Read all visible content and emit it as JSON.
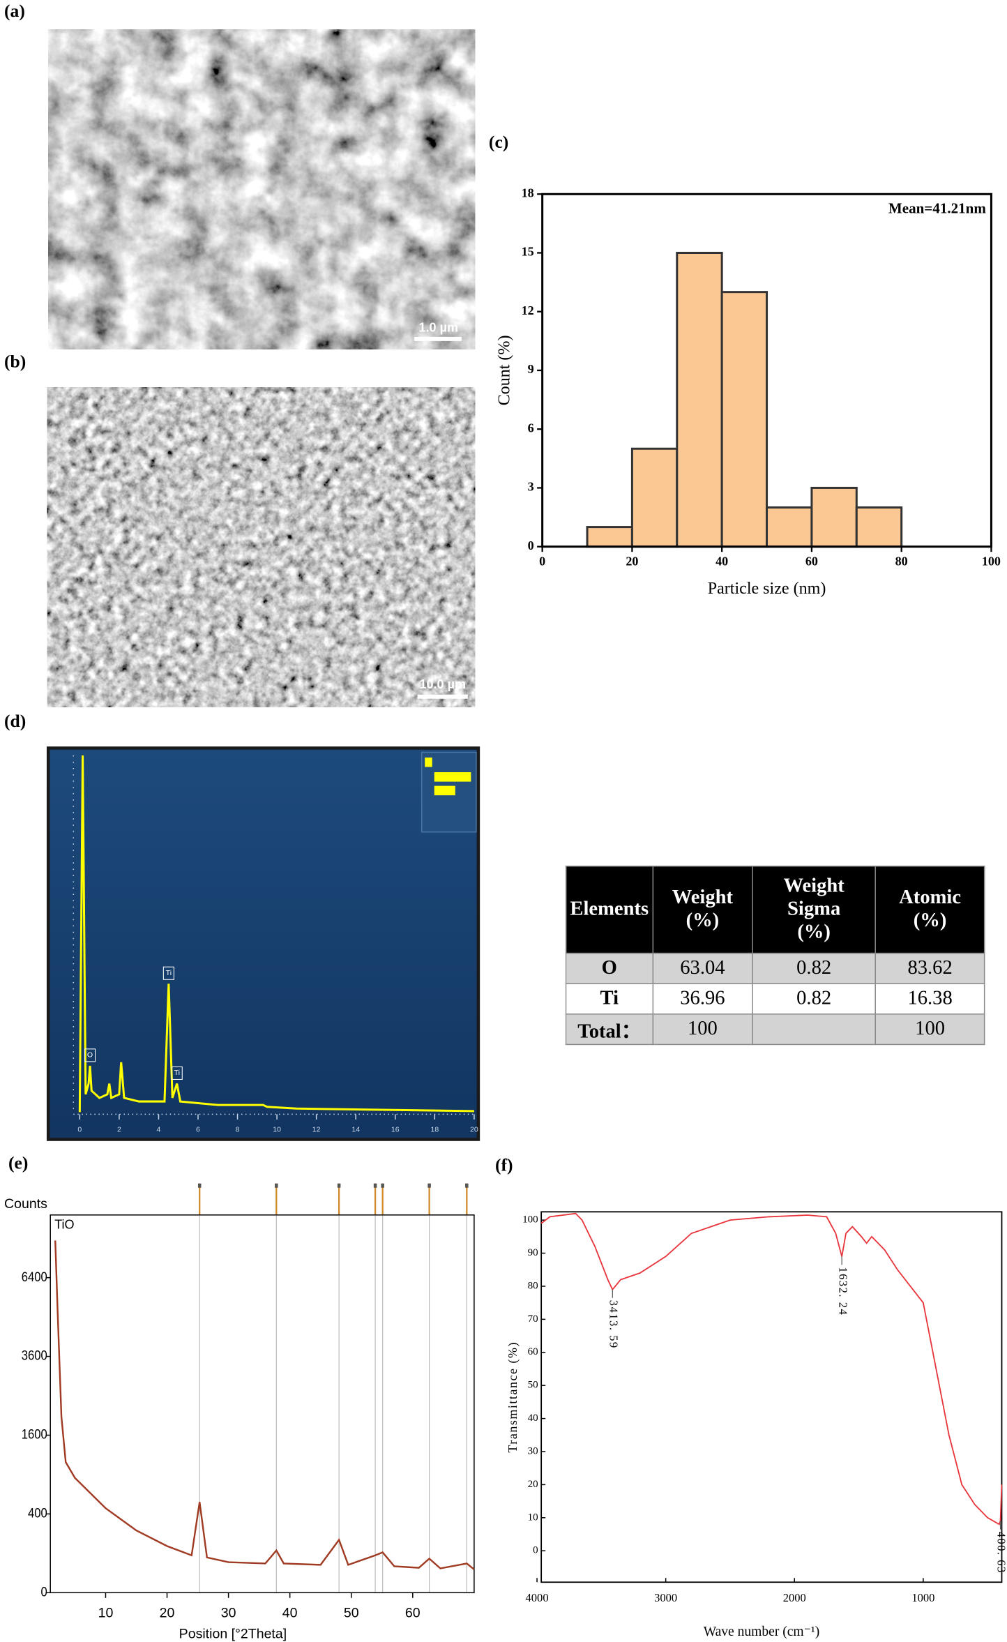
{
  "panel_labels": [
    "(a)",
    "(b)",
    "(c)",
    "(d)",
    "(e)",
    "(f)"
  ],
  "sem": [
    {
      "scale_bar": "1.0 µm"
    },
    {
      "scale_bar": "10.0 µm"
    }
  ],
  "chart_data": [
    {
      "type": "histogram",
      "bins": [
        10,
        20,
        30,
        40,
        50,
        60,
        70,
        80
      ],
      "counts": [
        1,
        5,
        15,
        13,
        2,
        3,
        2
      ],
      "color": "#fbc894",
      "edge_color": "#333333",
      "xlim": [
        0,
        100
      ],
      "xticks": [
        0,
        20,
        40,
        60,
        80,
        100
      ],
      "ylim": [
        0,
        18
      ],
      "yticks": [
        0,
        3,
        6,
        9,
        12,
        15,
        18
      ],
      "xlabel": "Particle size (nm)",
      "ylabel": "Count (%)",
      "annotation": "Mean=41.21nm"
    },
    {
      "type": "line",
      "background": "#1b3f6e",
      "color": "#ffff00",
      "x": [
        0,
        0.15,
        0.3,
        0.45,
        0.52,
        0.6,
        1,
        1.4,
        1.5,
        1.6,
        2,
        2.1,
        2.25,
        3,
        4.3,
        4.51,
        4.7,
        4.93,
        5.1,
        7,
        9.3,
        9.5,
        11,
        20
      ],
      "values": [
        0,
        100,
        5,
        8,
        13,
        6,
        4,
        5,
        8,
        4,
        5,
        14,
        4,
        3,
        3,
        36,
        4,
        8,
        3,
        2,
        2,
        1.5,
        1,
        0.3
      ],
      "xlim": [
        0,
        20
      ],
      "xticks": [
        0,
        2,
        4,
        6,
        8,
        10,
        12,
        14,
        16,
        18,
        20
      ],
      "ylim": [
        0,
        100
      ],
      "peak_labels": [
        {
          "text": "O",
          "x": 0.52
        },
        {
          "text": "Ti",
          "x": 4.51
        },
        {
          "text": "Ti",
          "x": 4.93
        }
      ]
    },
    {
      "type": "line",
      "yscale": "sqrt",
      "color": "#a03a22",
      "x": [
        1.8,
        2.2,
        2.8,
        3.5,
        5,
        10,
        15,
        20,
        24,
        25.3,
        26.5,
        30,
        36,
        37.8,
        39,
        45,
        48,
        49.5,
        53.9,
        55.1,
        57,
        61,
        62.7,
        64.5,
        68.8,
        70
      ],
      "values": [
        8000,
        5000,
        2000,
        1100,
        850,
        460,
        250,
        140,
        90,
        530,
        80,
        60,
        55,
        115,
        55,
        50,
        180,
        50,
        90,
        105,
        45,
        40,
        75,
        38,
        55,
        35
      ],
      "xlim": [
        1,
        70
      ],
      "xticks": [
        10,
        20,
        30,
        40,
        50,
        60
      ],
      "ylim": [
        0,
        9200
      ],
      "yticks": [
        0,
        400,
        1600,
        3600,
        6400
      ],
      "ylabel": "Counts",
      "xlabel": "Position [°2Theta]",
      "legend": "TiO",
      "reference_peaks": [
        25.3,
        37.8,
        48.0,
        53.9,
        55.1,
        62.7,
        68.8
      ],
      "reference_color": "#d08a2a"
    },
    {
      "type": "line",
      "color": "#e8333a",
      "x": [
        3967,
        3900,
        3700,
        3650,
        3550,
        3450,
        3413.59,
        3350,
        3200,
        3000,
        2800,
        2500,
        2200,
        1900,
        1750,
        1680,
        1632.24,
        1600,
        1550,
        1480,
        1440,
        1400,
        1300,
        1200,
        1080,
        1000,
        900,
        800,
        700,
        600,
        500,
        410,
        400.63,
        390
      ],
      "values": [
        99,
        101,
        102,
        100,
        92,
        82,
        79,
        82,
        84,
        89,
        96,
        100,
        101,
        101.5,
        101,
        96,
        89,
        96,
        98,
        95,
        93,
        95,
        91,
        85,
        79,
        75,
        55,
        35,
        20,
        14,
        10,
        8,
        9,
        20
      ],
      "xlim": [
        3967,
        390
      ],
      "xticks": [
        4000,
        3000,
        2000,
        1000
      ],
      "ylim": [
        -9.5,
        102.5
      ],
      "yticks": [
        0,
        10,
        20,
        30,
        40,
        50,
        60,
        70,
        80,
        90,
        100
      ],
      "xlabel": "Wave number (cm⁻¹)",
      "ylabel": "Transmittance (%)",
      "peak_labels": [
        {
          "text": "3413. 59",
          "x": 3413.59
        },
        {
          "text": "1632. 24",
          "x": 1632.24
        },
        {
          "text": "400. 63",
          "x": 400.63
        }
      ]
    }
  ],
  "table": {
    "header": [
      "Elements",
      "Weight (%)",
      "Weight Sigma (%)",
      "Atomic (%)"
    ],
    "rows": [
      [
        "O",
        63.04,
        0.82,
        83.62
      ],
      [
        "Ti",
        36.96,
        0.82,
        16.38
      ],
      [
        "Total：",
        100,
        null,
        100
      ]
    ]
  }
}
